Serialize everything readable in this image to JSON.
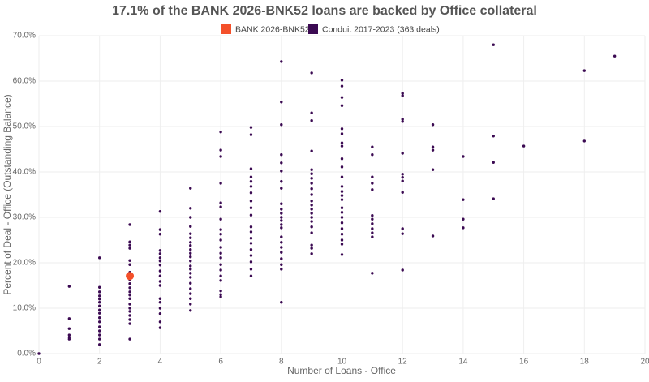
{
  "chart_data": {
    "type": "scatter",
    "title": "17.1% of the BANK 2026-BNK52 loans are backed by Office collateral",
    "x_label": "Number of Loans - Office",
    "y_label": "Percent of Deal - Office (Outstanding Balance)",
    "xlim": [
      0,
      20
    ],
    "xticks": [
      0,
      2,
      4,
      6,
      8,
      10,
      12,
      14,
      16,
      18,
      20
    ],
    "ylim": [
      0,
      70
    ],
    "yticks": [
      {
        "value": 0,
        "label": "0.0%"
      },
      {
        "value": 10,
        "label": "10.0%"
      },
      {
        "value": 20,
        "label": "20.0%"
      },
      {
        "value": 30,
        "label": "30.0%"
      },
      {
        "value": 40,
        "label": "40.0%"
      },
      {
        "value": 50,
        "label": "50.0%"
      },
      {
        "value": 60,
        "label": "60.0%"
      },
      {
        "value": 70,
        "label": "70.0%"
      }
    ],
    "grid": true,
    "series": [
      {
        "name": "BANK 2026-BNK52",
        "color": "#f4502a",
        "x": [
          3
        ],
        "values": [
          17.1
        ]
      },
      {
        "name": "Conduit 2017-2023 (363 deals)",
        "color": "#3b0a52",
        "x": [
          0,
          1,
          1,
          1,
          1,
          1,
          1,
          2,
          2,
          2,
          2,
          2,
          2,
          2,
          2,
          2,
          2,
          2,
          2,
          2,
          2,
          2,
          2,
          3,
          3,
          3,
          3,
          3,
          3,
          3,
          3,
          3,
          3,
          3,
          3,
          3,
          3,
          3,
          3,
          3,
          3,
          3,
          3,
          4,
          4,
          4,
          4,
          4,
          4,
          4,
          4,
          4,
          4,
          4,
          4,
          4,
          4,
          4,
          4,
          4,
          4,
          5,
          5,
          5,
          5,
          5,
          5,
          5,
          5,
          5,
          5,
          5,
          5,
          5,
          5,
          5,
          5,
          5,
          5,
          5,
          5,
          5,
          5,
          6,
          6,
          6,
          6,
          6,
          6,
          6,
          6,
          6,
          6,
          6,
          6,
          6,
          6,
          6,
          6,
          6,
          6,
          6,
          6,
          7,
          7,
          7,
          7,
          7,
          7,
          7,
          7,
          7,
          7,
          7,
          7,
          7,
          7,
          7,
          7,
          7,
          7,
          7,
          8,
          8,
          8,
          8,
          8,
          8,
          8,
          8,
          8,
          8,
          8,
          8,
          8,
          8,
          8,
          8,
          8,
          8,
          8,
          8,
          8,
          8,
          8,
          9,
          9,
          9,
          9,
          9,
          9,
          9,
          9,
          9,
          9,
          9,
          9,
          9,
          9,
          9,
          9,
          9,
          9,
          9,
          9,
          9,
          10,
          10,
          10,
          10,
          10,
          10,
          10,
          10,
          10,
          10,
          10,
          10,
          10,
          10,
          10,
          10,
          10,
          10,
          10,
          10,
          10,
          10,
          10,
          10,
          11,
          11,
          11,
          11,
          11,
          11,
          11,
          11,
          11,
          11,
          11,
          11,
          12,
          12,
          12,
          12,
          12,
          12,
          12,
          12,
          12,
          12,
          12,
          12,
          13,
          13,
          13,
          13,
          13,
          14,
          14,
          14,
          14,
          15,
          15,
          15,
          15,
          16,
          18,
          18,
          19
        ],
        "values": [
          0.0,
          14.8,
          7.7,
          5.5,
          4.1,
          3.6,
          3.2,
          21.1,
          14.6,
          13.6,
          12.7,
          12.0,
          11.3,
          10.5,
          9.6,
          8.9,
          7.9,
          7.0,
          5.9,
          5.0,
          4.1,
          3.2,
          2.0,
          28.4,
          24.6,
          23.9,
          23.2,
          20.5,
          19.6,
          17.9,
          16.3,
          15.4,
          14.5,
          13.6,
          12.9,
          12.1,
          10.9,
          10.0,
          9.3,
          8.4,
          7.5,
          6.6,
          3.2,
          31.3,
          27.3,
          26.3,
          22.7,
          22.0,
          21.1,
          20.4,
          19.5,
          18.2,
          17.1,
          15.9,
          15.0,
          12.1,
          11.3,
          10.0,
          8.8,
          7.0,
          5.7,
          36.4,
          32.0,
          30.0,
          28.0,
          26.4,
          25.5,
          24.5,
          23.8,
          22.9,
          22.1,
          21.3,
          20.4,
          19.3,
          18.6,
          17.7,
          16.8,
          15.5,
          14.3,
          13.2,
          12.1,
          10.9,
          9.5,
          48.8,
          44.8,
          43.4,
          37.5,
          33.2,
          32.3,
          29.6,
          27.3,
          26.3,
          25.0,
          23.4,
          22.1,
          21.1,
          19.6,
          18.4,
          17.1,
          16.1,
          13.8,
          13.0,
          12.5,
          49.8,
          48.2,
          40.7,
          38.9,
          37.9,
          36.8,
          35.4,
          33.6,
          32.1,
          30.5,
          27.9,
          26.8,
          25.4,
          24.3,
          22.9,
          21.6,
          20.2,
          18.6,
          17.1,
          64.3,
          55.4,
          50.4,
          43.8,
          42.0,
          40.2,
          37.9,
          36.4,
          33.0,
          31.8,
          30.9,
          30.0,
          29.3,
          28.4,
          27.7,
          25.7,
          24.5,
          23.4,
          22.3,
          20.9,
          19.6,
          18.6,
          11.3,
          61.8,
          53.0,
          51.3,
          44.6,
          40.5,
          39.6,
          38.6,
          37.5,
          36.3,
          35.0,
          33.6,
          32.7,
          31.8,
          30.9,
          30.0,
          29.1,
          27.9,
          26.6,
          23.9,
          23.2,
          22.0,
          60.2,
          58.9,
          56.4,
          54.6,
          49.5,
          48.4,
          46.4,
          45.7,
          42.9,
          41.1,
          38.9,
          36.8,
          35.7,
          34.8,
          33.9,
          32.1,
          31.1,
          30.0,
          28.8,
          27.5,
          26.3,
          25.0,
          24.1,
          21.8,
          45.5,
          43.8,
          38.9,
          37.5,
          36.1,
          30.4,
          29.6,
          28.6,
          27.5,
          26.6,
          25.7,
          17.7,
          57.3,
          56.8,
          51.6,
          51.1,
          44.1,
          39.5,
          38.8,
          38.0,
          35.5,
          27.5,
          26.4,
          18.4,
          50.4,
          45.5,
          44.8,
          40.5,
          25.9,
          43.4,
          33.9,
          29.6,
          27.7,
          68.0,
          47.9,
          42.1,
          34.1,
          45.7,
          62.3,
          46.8,
          65.5
        ]
      }
    ]
  }
}
